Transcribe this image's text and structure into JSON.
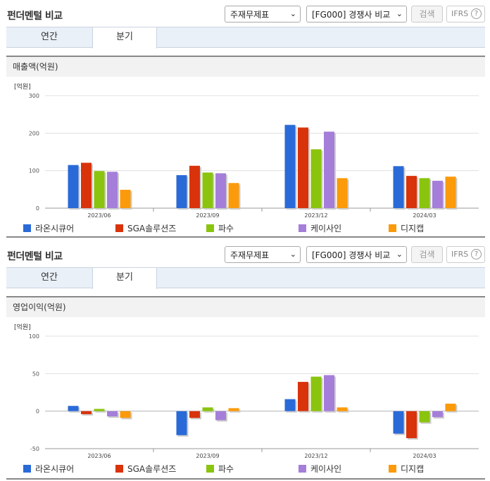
{
  "header": {
    "title": "펀더멘털 비교",
    "statement_select": "주재무제표",
    "compare_select": "[FG000] 경쟁사 비교",
    "search_label": "검색",
    "ifrs_label": "IFRS",
    "help_label": "?"
  },
  "tabs": [
    "연간",
    "분기"
  ],
  "active_tab": "분기",
  "sections": [
    {
      "subtitle": "매출액(억원)"
    },
    {
      "subtitle": "영업이익(억원)"
    }
  ],
  "colors": [
    "#2a6ad8",
    "#d9330b",
    "#8ac40f",
    "#a57ed9",
    "#fb9a0a"
  ],
  "chart_data": [
    {
      "type": "bar",
      "title": "매출액(억원)",
      "unit": "[억원]",
      "categories": [
        "2023/06",
        "2023/09",
        "2023/12",
        "2024/03"
      ],
      "ylim": [
        0,
        300
      ],
      "yticks": [
        0,
        100,
        200,
        300
      ],
      "series": [
        {
          "name": "라온시큐어",
          "values": [
            115,
            88,
            222,
            112
          ]
        },
        {
          "name": "SGA솔루션즈",
          "values": [
            121,
            113,
            215,
            86
          ]
        },
        {
          "name": "파수",
          "values": [
            99,
            95,
            157,
            80
          ]
        },
        {
          "name": "케이사인",
          "values": [
            97,
            93,
            204,
            73
          ]
        },
        {
          "name": "디지캡",
          "values": [
            49,
            67,
            80,
            84
          ]
        }
      ],
      "legend": "bottom",
      "grid": true
    },
    {
      "type": "bar",
      "title": "영업이익(억원)",
      "unit": "[억원]",
      "categories": [
        "2023/06",
        "2023/09",
        "2023/12",
        "2024/03"
      ],
      "ylim": [
        -50,
        100
      ],
      "yticks": [
        -50,
        0,
        50,
        100
      ],
      "series": [
        {
          "name": "라온시큐어",
          "values": [
            7,
            -32,
            16,
            -30
          ]
        },
        {
          "name": "SGA솔루션즈",
          "values": [
            -4,
            -9,
            39,
            -36
          ]
        },
        {
          "name": "파수",
          "values": [
            3,
            5,
            46,
            -15
          ]
        },
        {
          "name": "케이사인",
          "values": [
            -7,
            -12,
            48,
            -8
          ]
        },
        {
          "name": "디지캡",
          "values": [
            -9,
            4,
            5,
            10
          ]
        }
      ],
      "legend": "bottom",
      "grid": true
    }
  ]
}
